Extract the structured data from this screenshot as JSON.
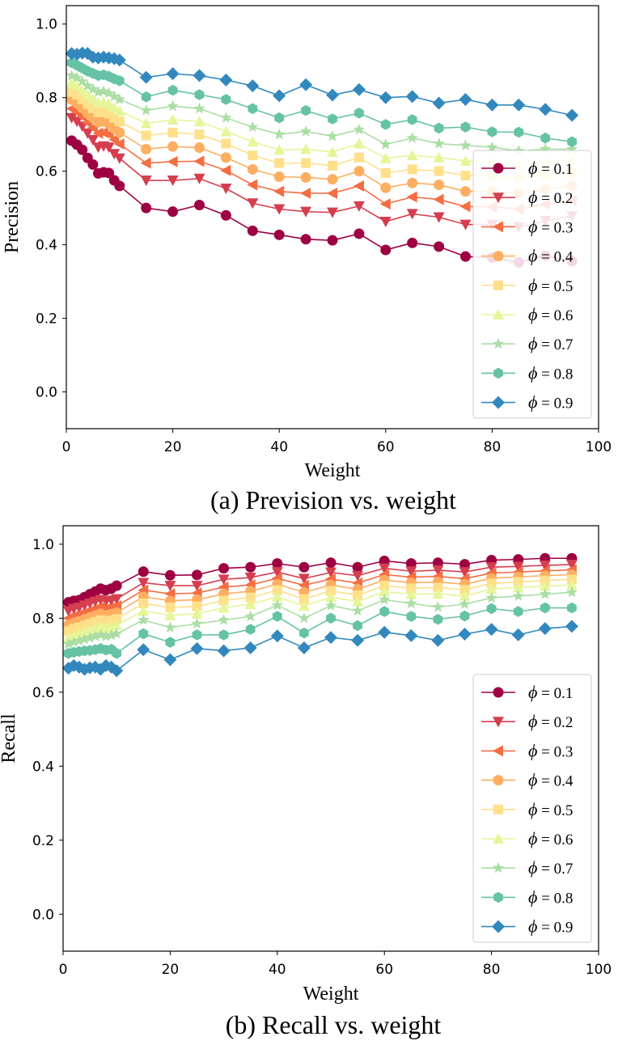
{
  "chart_data": [
    {
      "type": "line",
      "caption": "(a) Prevision vs. weight",
      "xlabel": "Weight",
      "ylabel": "Precision",
      "xlim": [
        0,
        100
      ],
      "ylim": [
        -0.1,
        1.05
      ],
      "xticks": [
        0,
        20,
        40,
        60,
        80,
        100
      ],
      "yticks": [
        0.0,
        0.2,
        0.4,
        0.6,
        0.8,
        1.0
      ],
      "xtick_labels": [
        "0",
        "20",
        "40",
        "60",
        "80",
        "100"
      ],
      "ytick_labels": [
        "0.0",
        "0.2",
        "0.4",
        "0.6",
        "0.8",
        "1.0"
      ],
      "legend_position": "right",
      "x": [
        1,
        2,
        3,
        4,
        5,
        6,
        7,
        8,
        9,
        10,
        15,
        20,
        25,
        30,
        35,
        40,
        45,
        50,
        55,
        60,
        65,
        70,
        75,
        80,
        85,
        90,
        95
      ],
      "series": [
        {
          "name": "ϕ = 0.1",
          "phi": "ϕ",
          "value_label": " = 0.1",
          "marker": "circle",
          "color": "#9e0142",
          "values": [
            0.683,
            0.672,
            0.658,
            0.636,
            0.618,
            0.594,
            0.597,
            0.595,
            0.575,
            0.56,
            0.5,
            0.49,
            0.508,
            0.48,
            0.438,
            0.427,
            0.415,
            0.412,
            0.43,
            0.386,
            0.405,
            0.395,
            0.368,
            0.365,
            0.352,
            0.37,
            0.355
          ]
        },
        {
          "name": "ϕ = 0.2",
          "phi": "ϕ",
          "value_label": " = 0.2",
          "marker": "triangle-down",
          "color": "#d53e4f",
          "values": [
            0.745,
            0.735,
            0.722,
            0.703,
            0.685,
            0.665,
            0.668,
            0.665,
            0.647,
            0.635,
            0.575,
            0.575,
            0.58,
            0.553,
            0.513,
            0.497,
            0.49,
            0.488,
            0.505,
            0.463,
            0.484,
            0.475,
            0.455,
            0.455,
            0.448,
            0.465,
            0.478
          ]
        },
        {
          "name": "ϕ = 0.3",
          "phi": "ϕ",
          "value_label": " = 0.3",
          "marker": "triangle-left",
          "color": "#f46d43",
          "values": [
            0.77,
            0.76,
            0.748,
            0.732,
            0.718,
            0.703,
            0.705,
            0.7,
            0.686,
            0.674,
            0.622,
            0.626,
            0.627,
            0.602,
            0.563,
            0.545,
            0.54,
            0.54,
            0.56,
            0.511,
            0.53,
            0.523,
            0.504,
            0.503,
            0.497,
            0.51,
            0.52
          ]
        },
        {
          "name": "ϕ = 0.4",
          "phi": "ϕ",
          "value_label": " = 0.4",
          "marker": "circle",
          "color": "#fdae61",
          "values": [
            0.795,
            0.785,
            0.772,
            0.757,
            0.745,
            0.733,
            0.735,
            0.729,
            0.716,
            0.705,
            0.66,
            0.667,
            0.664,
            0.637,
            0.605,
            0.585,
            0.583,
            0.578,
            0.6,
            0.555,
            0.568,
            0.563,
            0.545,
            0.545,
            0.54,
            0.55,
            0.56
          ]
        },
        {
          "name": "ϕ = 0.5",
          "phi": "ϕ",
          "value_label": " = 0.5",
          "marker": "square",
          "color": "#fee08b",
          "values": [
            0.815,
            0.808,
            0.796,
            0.782,
            0.771,
            0.76,
            0.762,
            0.756,
            0.745,
            0.735,
            0.697,
            0.705,
            0.7,
            0.675,
            0.643,
            0.622,
            0.622,
            0.615,
            0.637,
            0.595,
            0.605,
            0.6,
            0.588,
            0.588,
            0.582,
            0.59,
            0.595
          ]
        },
        {
          "name": "ϕ = 0.6",
          "phi": "ϕ",
          "value_label": " = 0.6",
          "marker": "triangle-up",
          "color": "#e6f598",
          "values": [
            0.84,
            0.832,
            0.82,
            0.807,
            0.797,
            0.787,
            0.789,
            0.783,
            0.773,
            0.764,
            0.73,
            0.74,
            0.735,
            0.708,
            0.68,
            0.658,
            0.66,
            0.652,
            0.675,
            0.635,
            0.643,
            0.637,
            0.628,
            0.625,
            0.618,
            0.625,
            0.63
          ]
        },
        {
          "name": "ϕ = 0.7",
          "phi": "ϕ",
          "value_label": " = 0.7",
          "marker": "star",
          "color": "#abdda4",
          "values": [
            0.86,
            0.854,
            0.844,
            0.832,
            0.823,
            0.815,
            0.817,
            0.812,
            0.803,
            0.795,
            0.765,
            0.777,
            0.77,
            0.745,
            0.72,
            0.7,
            0.708,
            0.695,
            0.713,
            0.673,
            0.69,
            0.675,
            0.67,
            0.665,
            0.655,
            0.66,
            0.66
          ]
        },
        {
          "name": "ϕ = 0.8",
          "phi": "ϕ",
          "value_label": " = 0.8",
          "marker": "hexagon",
          "color": "#66c2a5",
          "values": [
            0.895,
            0.888,
            0.88,
            0.872,
            0.866,
            0.86,
            0.862,
            0.858,
            0.851,
            0.846,
            0.802,
            0.82,
            0.808,
            0.795,
            0.77,
            0.745,
            0.765,
            0.742,
            0.758,
            0.727,
            0.74,
            0.717,
            0.72,
            0.707,
            0.706,
            0.69,
            0.68
          ]
        },
        {
          "name": "ϕ = 0.9",
          "phi": "ϕ",
          "value_label": " = 0.9",
          "marker": "diamond",
          "color": "#3288bd",
          "values": [
            0.92,
            0.918,
            0.921,
            0.92,
            0.91,
            0.908,
            0.91,
            0.908,
            0.906,
            0.902,
            0.855,
            0.865,
            0.86,
            0.848,
            0.832,
            0.805,
            0.835,
            0.807,
            0.822,
            0.8,
            0.803,
            0.785,
            0.795,
            0.78,
            0.78,
            0.768,
            0.752
          ]
        }
      ]
    },
    {
      "type": "line",
      "caption": "(b) Recall vs. weight",
      "xlabel": "Weight",
      "ylabel": "Recall",
      "xlim": [
        0,
        100
      ],
      "ylim": [
        -0.1,
        1.05
      ],
      "xticks": [
        0,
        20,
        40,
        60,
        80,
        100
      ],
      "yticks": [
        0.0,
        0.2,
        0.4,
        0.6,
        0.8,
        1.0
      ],
      "xtick_labels": [
        "0",
        "20",
        "40",
        "60",
        "80",
        "100"
      ],
      "ytick_labels": [
        "0.0",
        "0.2",
        "0.4",
        "0.6",
        "0.8",
        "1.0"
      ],
      "legend_position": "lower right",
      "x": [
        1,
        2,
        3,
        4,
        5,
        6,
        7,
        8,
        9,
        10,
        15,
        20,
        25,
        30,
        35,
        40,
        45,
        50,
        55,
        60,
        65,
        70,
        75,
        80,
        85,
        90,
        95
      ],
      "series": [
        {
          "name": "ϕ = 0.1",
          "phi": "ϕ",
          "value_label": " = 0.1",
          "marker": "circle",
          "color": "#9e0142",
          "values": [
            0.843,
            0.847,
            0.849,
            0.857,
            0.865,
            0.872,
            0.88,
            0.876,
            0.88,
            0.888,
            0.926,
            0.916,
            0.917,
            0.935,
            0.938,
            0.948,
            0.938,
            0.95,
            0.938,
            0.955,
            0.948,
            0.95,
            0.946,
            0.957,
            0.959,
            0.962,
            0.962
          ]
        },
        {
          "name": "ϕ = 0.2",
          "phi": "ϕ",
          "value_label": " = 0.2",
          "marker": "triangle-down",
          "color": "#d53e4f",
          "values": [
            0.82,
            0.826,
            0.829,
            0.835,
            0.84,
            0.845,
            0.85,
            0.846,
            0.848,
            0.852,
            0.896,
            0.888,
            0.888,
            0.905,
            0.91,
            0.925,
            0.907,
            0.924,
            0.915,
            0.935,
            0.927,
            0.93,
            0.925,
            0.938,
            0.94,
            0.943,
            0.945
          ]
        },
        {
          "name": "ϕ = 0.3",
          "phi": "ϕ",
          "value_label": " = 0.3",
          "marker": "triangle-left",
          "color": "#f46d43",
          "values": [
            0.8,
            0.806,
            0.81,
            0.815,
            0.82,
            0.825,
            0.83,
            0.826,
            0.829,
            0.833,
            0.876,
            0.866,
            0.868,
            0.884,
            0.89,
            0.908,
            0.889,
            0.906,
            0.895,
            0.918,
            0.911,
            0.913,
            0.907,
            0.922,
            0.925,
            0.928,
            0.931
          ]
        },
        {
          "name": "ϕ = 0.4",
          "phi": "ϕ",
          "value_label": " = 0.4",
          "marker": "circle",
          "color": "#fdae61",
          "values": [
            0.782,
            0.788,
            0.792,
            0.797,
            0.802,
            0.807,
            0.812,
            0.808,
            0.811,
            0.815,
            0.858,
            0.847,
            0.85,
            0.866,
            0.873,
            0.892,
            0.87,
            0.89,
            0.878,
            0.903,
            0.896,
            0.898,
            0.892,
            0.908,
            0.912,
            0.915,
            0.918
          ]
        },
        {
          "name": "ϕ = 0.5",
          "phi": "ϕ",
          "value_label": " = 0.5",
          "marker": "square",
          "color": "#fee08b",
          "values": [
            0.765,
            0.771,
            0.775,
            0.78,
            0.785,
            0.79,
            0.795,
            0.791,
            0.794,
            0.798,
            0.84,
            0.829,
            0.832,
            0.848,
            0.856,
            0.876,
            0.852,
            0.874,
            0.862,
            0.888,
            0.881,
            0.883,
            0.877,
            0.894,
            0.898,
            0.902,
            0.905
          ]
        },
        {
          "name": "ϕ = 0.6",
          "phi": "ϕ",
          "value_label": " = 0.6",
          "marker": "triangle-up",
          "color": "#e6f598",
          "values": [
            0.748,
            0.754,
            0.758,
            0.763,
            0.768,
            0.773,
            0.778,
            0.774,
            0.777,
            0.781,
            0.82,
            0.808,
            0.812,
            0.828,
            0.838,
            0.858,
            0.833,
            0.857,
            0.845,
            0.872,
            0.865,
            0.866,
            0.86,
            0.879,
            0.883,
            0.887,
            0.89
          ]
        },
        {
          "name": "ϕ = 0.7",
          "phi": "ϕ",
          "value_label": " = 0.7",
          "marker": "star",
          "color": "#abdda4",
          "values": [
            0.73,
            0.735,
            0.739,
            0.743,
            0.747,
            0.751,
            0.755,
            0.751,
            0.754,
            0.758,
            0.795,
            0.775,
            0.785,
            0.795,
            0.805,
            0.835,
            0.8,
            0.834,
            0.82,
            0.85,
            0.84,
            0.83,
            0.838,
            0.855,
            0.86,
            0.865,
            0.87
          ]
        },
        {
          "name": "ϕ = 0.8",
          "phi": "ϕ",
          "value_label": " = 0.8",
          "marker": "hexagon",
          "color": "#66c2a5",
          "values": [
            0.705,
            0.708,
            0.71,
            0.712,
            0.713,
            0.715,
            0.718,
            0.714,
            0.716,
            0.705,
            0.758,
            0.735,
            0.755,
            0.755,
            0.77,
            0.805,
            0.76,
            0.8,
            0.78,
            0.818,
            0.805,
            0.797,
            0.806,
            0.826,
            0.818,
            0.828,
            0.828
          ]
        },
        {
          "name": "ϕ = 0.9",
          "phi": "ϕ",
          "value_label": " = 0.9",
          "marker": "diamond",
          "color": "#3288bd",
          "values": [
            0.665,
            0.672,
            0.668,
            0.662,
            0.666,
            0.668,
            0.662,
            0.672,
            0.668,
            0.658,
            0.715,
            0.688,
            0.718,
            0.712,
            0.72,
            0.752,
            0.72,
            0.748,
            0.74,
            0.762,
            0.753,
            0.74,
            0.757,
            0.77,
            0.755,
            0.772,
            0.778
          ]
        }
      ]
    }
  ]
}
